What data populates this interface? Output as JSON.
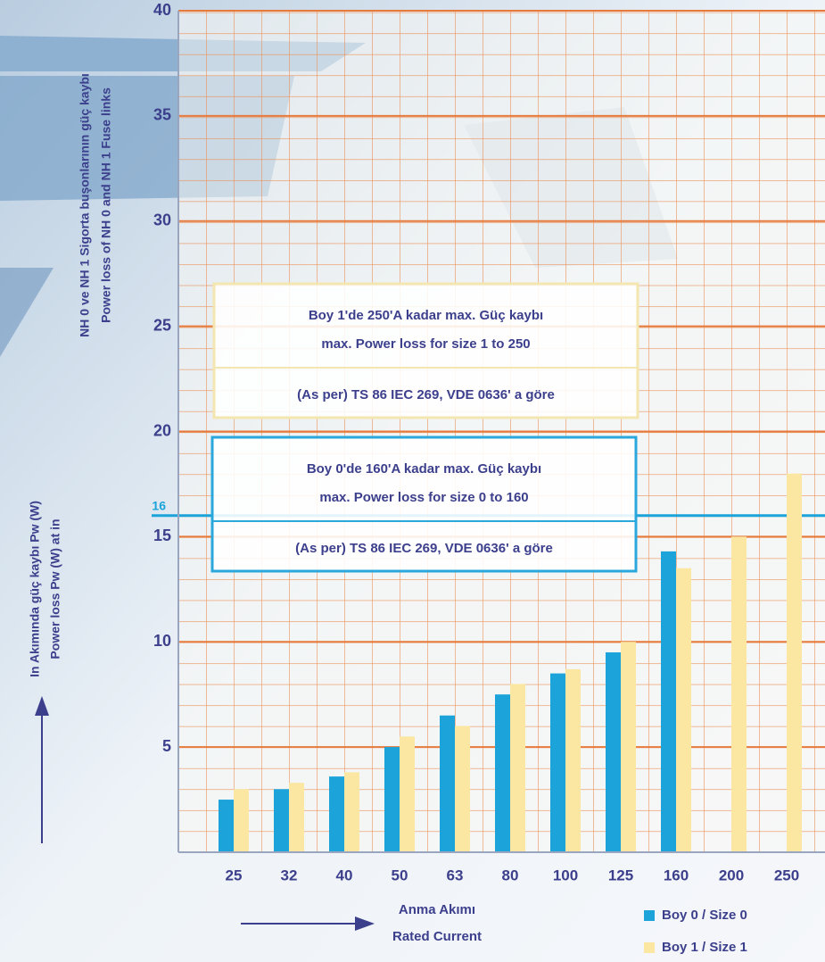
{
  "chart_data": {
    "type": "bar",
    "y_title": [
      "NH 0 ve NH 1 Sigorta buşonlarının güç kaybı",
      "Power loss of NH 0 and NH 1 Fuse links"
    ],
    "y_label": [
      "In Akımında güç kaybı  Pw (W)",
      "Power loss Pw (W) at in"
    ],
    "x_label": [
      "Anma Akımı",
      "Rated Current"
    ],
    "categories": [
      "25",
      "32",
      "40",
      "50",
      "63",
      "80",
      "100",
      "125",
      "160",
      "200",
      "250"
    ],
    "series": [
      {
        "name": "Boy 0 / Size 0",
        "color": "#1ba3da",
        "values": [
          2.5,
          3.0,
          3.6,
          5.0,
          6.5,
          7.5,
          8.5,
          9.5,
          14.3,
          null,
          null
        ]
      },
      {
        "name": "Boy 1 / Size 1",
        "color": "#fbe7a2",
        "values": [
          3.0,
          3.3,
          3.8,
          5.5,
          6.0,
          8.0,
          8.7,
          10.0,
          13.5,
          15.0,
          18.0
        ]
      }
    ],
    "ylim": [
      0,
      40
    ],
    "yticks": [
      5,
      10,
      15,
      20,
      25,
      30,
      35,
      40
    ],
    "reference_line": 16,
    "annotations": [
      {
        "lines": [
          "Boy 1'de 250'A  kadar max. Güç kaybı",
          "max.  Power loss for size 1   to 250",
          "(As per) TS 86 IEC 269, VDE 0636' a göre"
        ],
        "color": "#f3e6b0"
      },
      {
        "lines": [
          "Boy 0'de 160'A  kadar max. Güç kaybı",
          "max.  Power loss for size 0   to 160",
          "(As per) TS 86 IEC 269, VDE 0636' a göre"
        ],
        "color": "#2aa8dc"
      }
    ],
    "grid": true,
    "legend": "lower right"
  }
}
